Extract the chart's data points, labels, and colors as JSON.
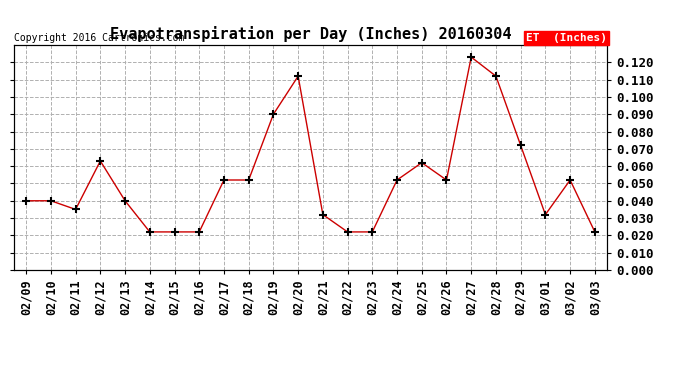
{
  "title": "Evapotranspiration per Day (Inches) 20160304",
  "copyright": "Copyright 2016 Cartronics.com",
  "legend_label": "ET  (Inches)",
  "legend_bg": "#ff0000",
  "legend_text_color": "#ffffff",
  "dates": [
    "02/09",
    "02/10",
    "02/11",
    "02/12",
    "02/13",
    "02/14",
    "02/15",
    "02/16",
    "02/17",
    "02/18",
    "02/19",
    "02/20",
    "02/21",
    "02/22",
    "02/23",
    "02/24",
    "02/25",
    "02/26",
    "02/27",
    "02/28",
    "02/29",
    "03/01",
    "03/02",
    "03/03"
  ],
  "values": [
    0.04,
    0.04,
    0.035,
    0.063,
    0.04,
    0.022,
    0.022,
    0.022,
    0.052,
    0.052,
    0.09,
    0.112,
    0.032,
    0.022,
    0.022,
    0.052,
    0.062,
    0.052,
    0.123,
    0.112,
    0.072,
    0.032,
    0.052,
    0.022
  ],
  "ylim": [
    0.0,
    0.13
  ],
  "yticks": [
    0.0,
    0.01,
    0.02,
    0.03,
    0.04,
    0.05,
    0.06,
    0.07,
    0.08,
    0.09,
    0.1,
    0.11,
    0.12
  ],
  "line_color": "#cc0000",
  "marker_color": "#000000",
  "grid_color": "#b0b0b0",
  "bg_color": "#ffffff",
  "title_fontsize": 11,
  "axis_fontsize": 8.5,
  "copyright_fontsize": 7
}
